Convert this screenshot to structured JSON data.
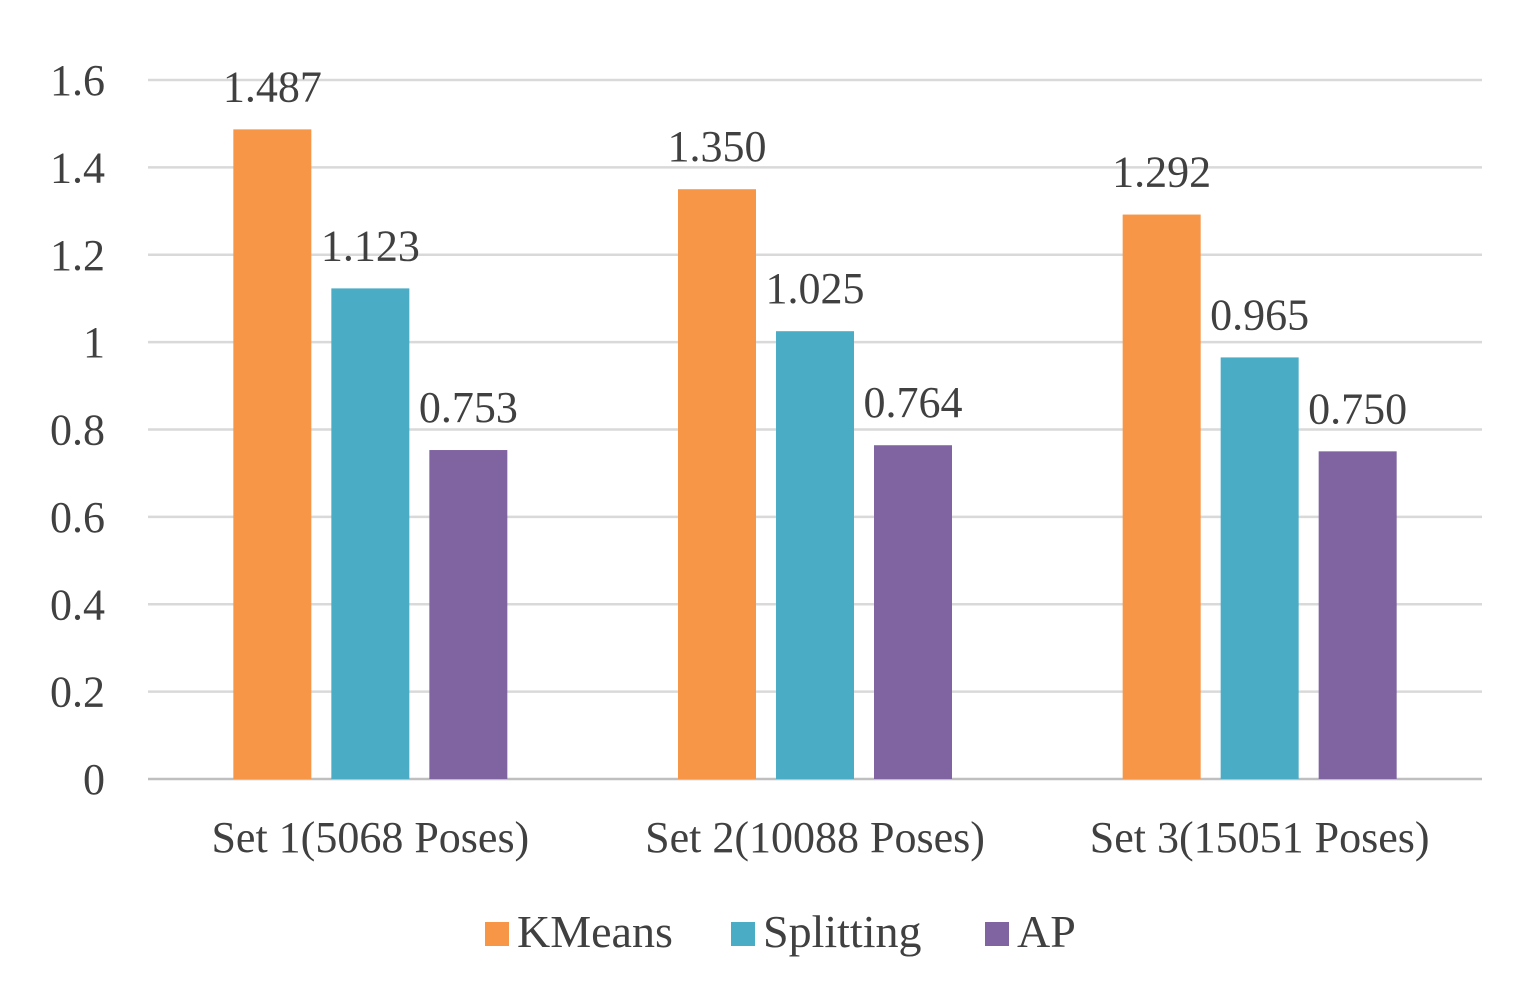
{
  "chart_data": {
    "type": "bar",
    "title": "",
    "xlabel": "",
    "ylabel": "",
    "ylim": [
      0,
      1.6
    ],
    "yticks": [
      "0",
      "0.2",
      "0.4",
      "0.6",
      "0.8",
      "1",
      "1.2",
      "1.4",
      "1.6"
    ],
    "grid": true,
    "legend_position": "bottom",
    "categories": [
      "Set 1(5068 Poses)",
      "Set 2(10088 Poses)",
      "Set 3(15051 Poses)"
    ],
    "series": [
      {
        "name": "KMeans",
        "color": "#f79646",
        "values": [
          1.487,
          1.35,
          1.292
        ],
        "labels": [
          "1.487",
          "1.350",
          "1.292"
        ]
      },
      {
        "name": "Splitting",
        "color": "#4bacc6",
        "values": [
          1.123,
          1.025,
          0.965
        ],
        "labels": [
          "1.123",
          "1.025",
          "0.965"
        ]
      },
      {
        "name": "AP",
        "color": "#8064a2",
        "values": [
          0.753,
          0.764,
          0.75
        ],
        "labels": [
          "0.753",
          "0.764",
          "0.750"
        ]
      }
    ]
  }
}
